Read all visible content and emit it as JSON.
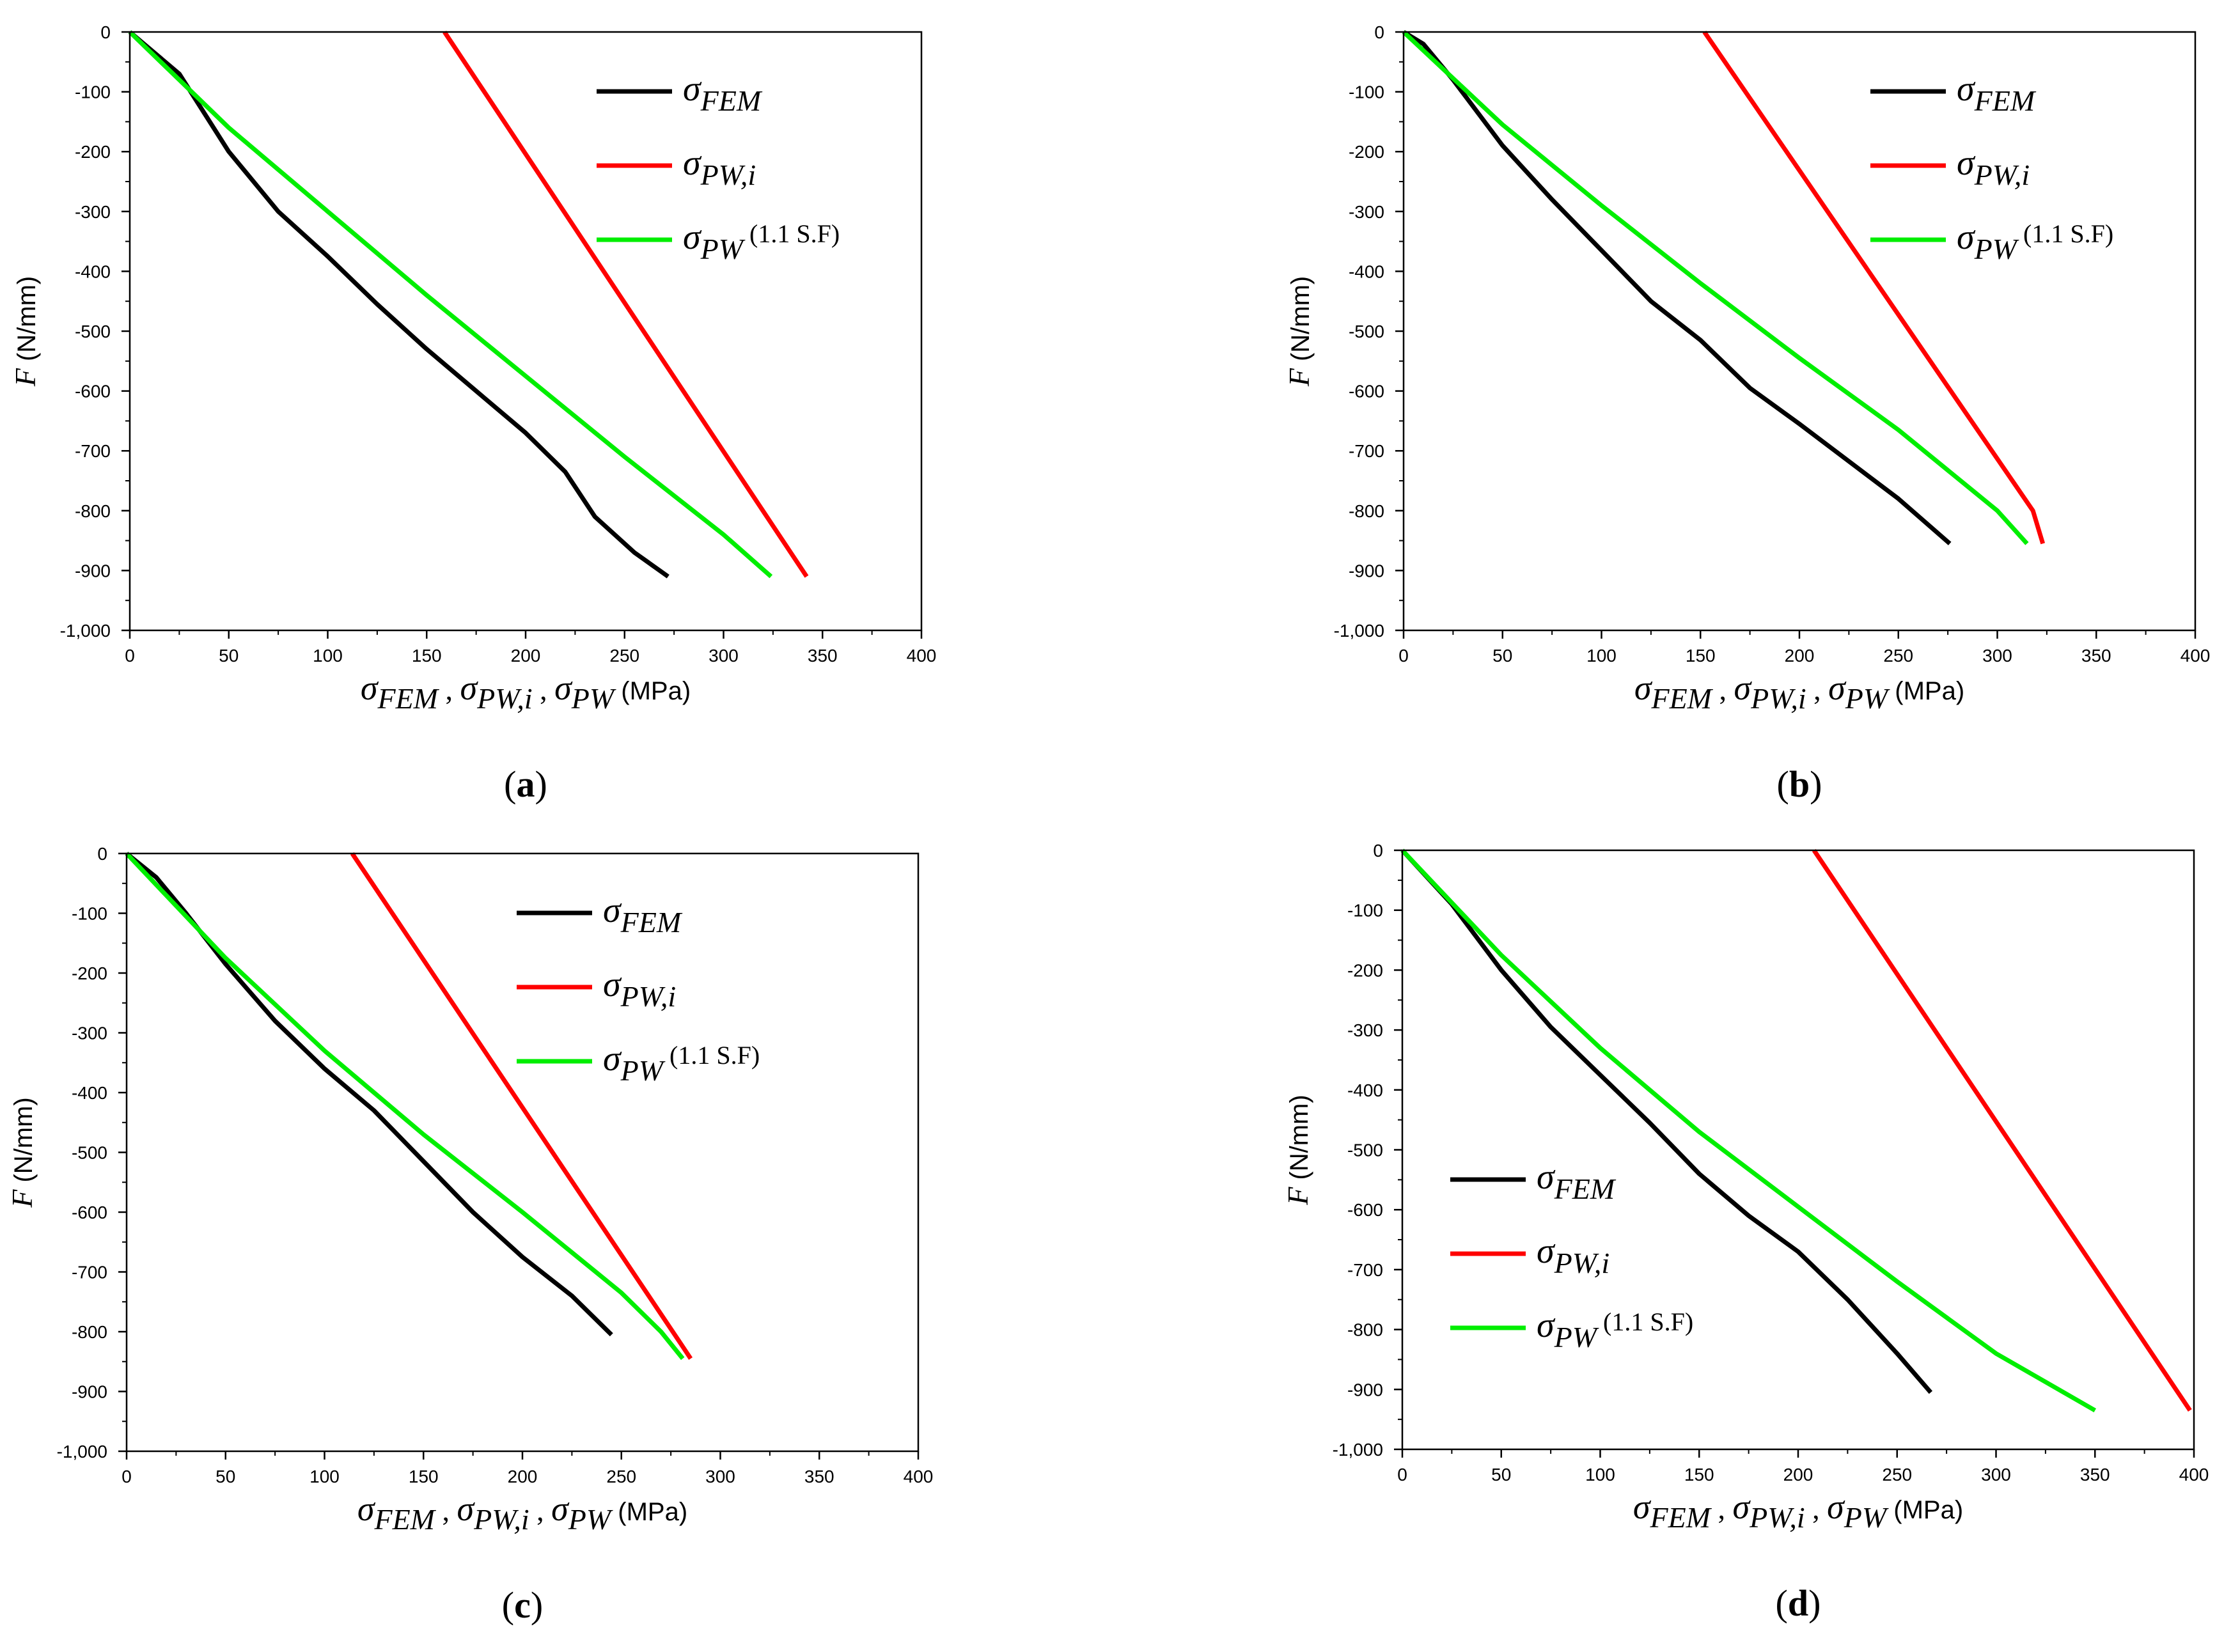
{
  "figure": {
    "colors": {
      "fem": "#000000",
      "pwi": "#ff0000",
      "pw": "#00ee00"
    },
    "axis_text": {
      "ylabel_var": "F",
      "ylabel_units": " (N/mm)",
      "xlabel_sym1": "σ",
      "xlabel_sub1": "FEM",
      "xlabel_sep1": " , ",
      "xlabel_sym2": "σ",
      "xlabel_sub2": "PW,i",
      "xlabel_sep2": " , ",
      "xlabel_sym3": "σ",
      "xlabel_sub3": "PW",
      "xlabel_units": " (MPa)"
    },
    "legend_text": {
      "sigma": "σ",
      "fem_sub": "FEM",
      "pwi_sub": "PW,i",
      "pw_sub": "PW",
      "pw_suffix": "(1.1 S.F)"
    }
  },
  "chart_data": [
    {
      "type": "line",
      "panel_label": "a",
      "xlabel": "σFEM , σPW,i , σPW (MPa)",
      "ylabel": "F (N/mm)",
      "xlim": [
        0,
        400
      ],
      "ylim": [
        -1000,
        0
      ],
      "xticks": [
        0,
        50,
        100,
        150,
        200,
        250,
        300,
        350,
        400
      ],
      "xtick_labels": [
        "0",
        "50",
        "100",
        "150",
        "200",
        "250",
        "300",
        "350",
        "400"
      ],
      "yticks": [
        0,
        -100,
        -200,
        -300,
        -400,
        -500,
        -600,
        -700,
        -800,
        -900,
        -1000
      ],
      "ytick_labels": [
        "0",
        "-100",
        "-200",
        "-300",
        "-400",
        "-500",
        "-600",
        "-700",
        "-800",
        "-900",
        "-1,000"
      ],
      "legend_position": "top-right",
      "series": [
        {
          "name": "σFEM",
          "key": "fem",
          "points": [
            [
              0,
              0
            ],
            [
              25,
              -70
            ],
            [
              50,
              -200
            ],
            [
              75,
              -300
            ],
            [
              100,
              -375
            ],
            [
              125,
              -455
            ],
            [
              150,
              -530
            ],
            [
              175,
              -600
            ],
            [
              200,
              -670
            ],
            [
              220,
              -735
            ],
            [
              235,
              -810
            ],
            [
              255,
              -870
            ],
            [
              272,
              -910
            ]
          ]
        },
        {
          "name": "σPW,i",
          "key": "pwi",
          "points": [
            [
              159,
              0
            ],
            [
              342,
              -910
            ]
          ]
        },
        {
          "name": "σPW (1.1 S.F)",
          "key": "pw",
          "points": [
            [
              0,
              0
            ],
            [
              50,
              -160
            ],
            [
              100,
              -300
            ],
            [
              150,
              -440
            ],
            [
              200,
              -575
            ],
            [
              250,
              -710
            ],
            [
              300,
              -840
            ],
            [
              324,
              -910
            ]
          ]
        }
      ]
    },
    {
      "type": "line",
      "panel_label": "b",
      "xlabel": "σFEM , σPW,i , σPW (MPa)",
      "ylabel": "F (N/mm)",
      "xlim": [
        0,
        400
      ],
      "ylim": [
        -1000,
        0
      ],
      "xticks": [
        0,
        50,
        100,
        150,
        200,
        250,
        300,
        350,
        400
      ],
      "xtick_labels": [
        "0",
        "50",
        "100",
        "150",
        "200",
        "250",
        "300",
        "350",
        "400"
      ],
      "yticks": [
        0,
        -100,
        -200,
        -300,
        -400,
        -500,
        -600,
        -700,
        -800,
        -900,
        -1000
      ],
      "ytick_labels": [
        "0",
        "-100",
        "-200",
        "-300",
        "-400",
        "-500",
        "-600",
        "-700",
        "-800",
        "-900",
        "-1,000"
      ],
      "legend_position": "top-right",
      "series": [
        {
          "name": "σFEM",
          "key": "fem",
          "points": [
            [
              0,
              0
            ],
            [
              10,
              -20
            ],
            [
              25,
              -80
            ],
            [
              50,
              -190
            ],
            [
              75,
              -280
            ],
            [
              100,
              -365
            ],
            [
              125,
              -450
            ],
            [
              150,
              -515
            ],
            [
              175,
              -595
            ],
            [
              200,
              -655
            ],
            [
              250,
              -780
            ],
            [
              276,
              -855
            ]
          ]
        },
        {
          "name": "σPW,i",
          "key": "pwi",
          "points": [
            [
              152,
              0
            ],
            [
              318,
              -800
            ],
            [
              323,
              -855
            ]
          ]
        },
        {
          "name": "σPW (1.1 S.F)",
          "key": "pw",
          "points": [
            [
              0,
              0
            ],
            [
              50,
              -155
            ],
            [
              100,
              -290
            ],
            [
              150,
              -420
            ],
            [
              200,
              -545
            ],
            [
              250,
              -665
            ],
            [
              300,
              -800
            ],
            [
              315,
              -855
            ]
          ]
        }
      ]
    },
    {
      "type": "line",
      "panel_label": "c",
      "xlabel": "σFEM , σPW,i , σPW (MPa)",
      "ylabel": "F (N/mm)",
      "xlim": [
        0,
        400
      ],
      "ylim": [
        -1000,
        0
      ],
      "xticks": [
        0,
        50,
        100,
        150,
        200,
        250,
        300,
        350,
        400
      ],
      "xtick_labels": [
        "0",
        "50",
        "100",
        "150",
        "200",
        "250",
        "300",
        "350",
        "400"
      ],
      "yticks": [
        0,
        -100,
        -200,
        -300,
        -400,
        -500,
        -600,
        -700,
        -800,
        -900,
        -1000
      ],
      "ytick_labels": [
        "0",
        "-100",
        "-200",
        "-300",
        "-400",
        "-500",
        "-600",
        "-700",
        "-800",
        "-900",
        "-1,000"
      ],
      "legend_position": "top-right",
      "series": [
        {
          "name": "σFEM",
          "key": "fem",
          "points": [
            [
              0,
              0
            ],
            [
              15,
              -40
            ],
            [
              30,
              -100
            ],
            [
              50,
              -185
            ],
            [
              75,
              -280
            ],
            [
              100,
              -360
            ],
            [
              125,
              -430
            ],
            [
              150,
              -515
            ],
            [
              175,
              -600
            ],
            [
              200,
              -675
            ],
            [
              225,
              -740
            ],
            [
              245,
              -805
            ]
          ]
        },
        {
          "name": "σPW,i",
          "key": "pwi",
          "points": [
            [
              114,
              0
            ],
            [
              280,
              -820
            ],
            [
              285,
              -845
            ]
          ]
        },
        {
          "name": "σPW (1.1 S.F)",
          "key": "pw",
          "points": [
            [
              0,
              0
            ],
            [
              50,
              -175
            ],
            [
              100,
              -330
            ],
            [
              150,
              -470
            ],
            [
              200,
              -600
            ],
            [
              250,
              -735
            ],
            [
              270,
              -800
            ],
            [
              281,
              -845
            ]
          ]
        }
      ]
    },
    {
      "type": "line",
      "panel_label": "d",
      "xlabel": "σFEM , σPW,i , σPW (MPa)",
      "ylabel": "F (N/mm)",
      "xlim": [
        0,
        400
      ],
      "ylim": [
        -1000,
        0
      ],
      "xticks": [
        0,
        50,
        100,
        150,
        200,
        250,
        300,
        350,
        400
      ],
      "xtick_labels": [
        "0",
        "50",
        "100",
        "150",
        "200",
        "250",
        "300",
        "350",
        "400"
      ],
      "yticks": [
        0,
        -100,
        -200,
        -300,
        -400,
        -500,
        -600,
        -700,
        -800,
        -900,
        -1000
      ],
      "ytick_labels": [
        "0",
        "-100",
        "-200",
        "-300",
        "-400",
        "-500",
        "-600",
        "-700",
        "-800",
        "-900",
        "-1,000"
      ],
      "legend_position": "bottom-left",
      "series": [
        {
          "name": "σFEM",
          "key": "fem",
          "points": [
            [
              0,
              0
            ],
            [
              25,
              -90
            ],
            [
              50,
              -200
            ],
            [
              75,
              -295
            ],
            [
              100,
              -375
            ],
            [
              125,
              -455
            ],
            [
              150,
              -540
            ],
            [
              175,
              -610
            ],
            [
              200,
              -670
            ],
            [
              225,
              -750
            ],
            [
              250,
              -840
            ],
            [
              267,
              -905
            ]
          ]
        },
        {
          "name": "σPW,i",
          "key": "pwi",
          "points": [
            [
              208,
              0
            ],
            [
              398,
              -935
            ]
          ]
        },
        {
          "name": "σPW (1.1 S.F)",
          "key": "pw",
          "points": [
            [
              0,
              0
            ],
            [
              50,
              -175
            ],
            [
              100,
              -330
            ],
            [
              150,
              -470
            ],
            [
              200,
              -595
            ],
            [
              250,
              -720
            ],
            [
              300,
              -840
            ],
            [
              350,
              -935
            ]
          ]
        }
      ]
    }
  ]
}
